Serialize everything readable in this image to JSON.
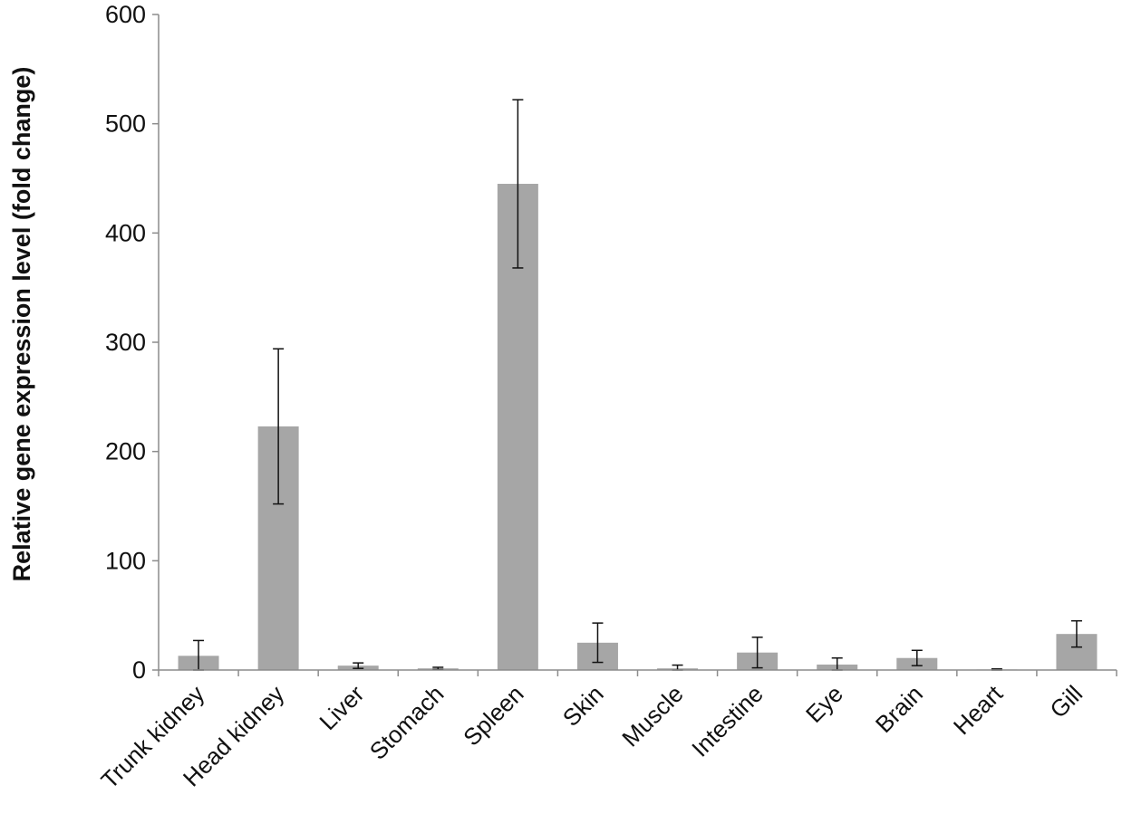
{
  "chart_data": {
    "type": "bar",
    "title": "",
    "xlabel": "",
    "ylabel": "Relative gene expression level (fold change)",
    "ylim": [
      0,
      600
    ],
    "yticks": [
      0,
      100,
      200,
      300,
      400,
      500,
      600
    ],
    "grid": false,
    "legend": "none",
    "bar_color": "#a6a6a6",
    "categories": [
      "Trunk kidney",
      "Head kidney",
      "Liver",
      "Stomach",
      "Spleen",
      "Skin",
      "Muscle",
      "Intestine",
      "Eye",
      "Brain",
      "Heart",
      "Gill"
    ],
    "values": [
      13,
      223,
      4,
      1.5,
      445,
      25,
      1.5,
      16,
      5,
      11,
      0.5,
      33
    ],
    "error": [
      14,
      71,
      2.5,
      1,
      77,
      18,
      3,
      14,
      6,
      7,
      0.5,
      12
    ]
  }
}
